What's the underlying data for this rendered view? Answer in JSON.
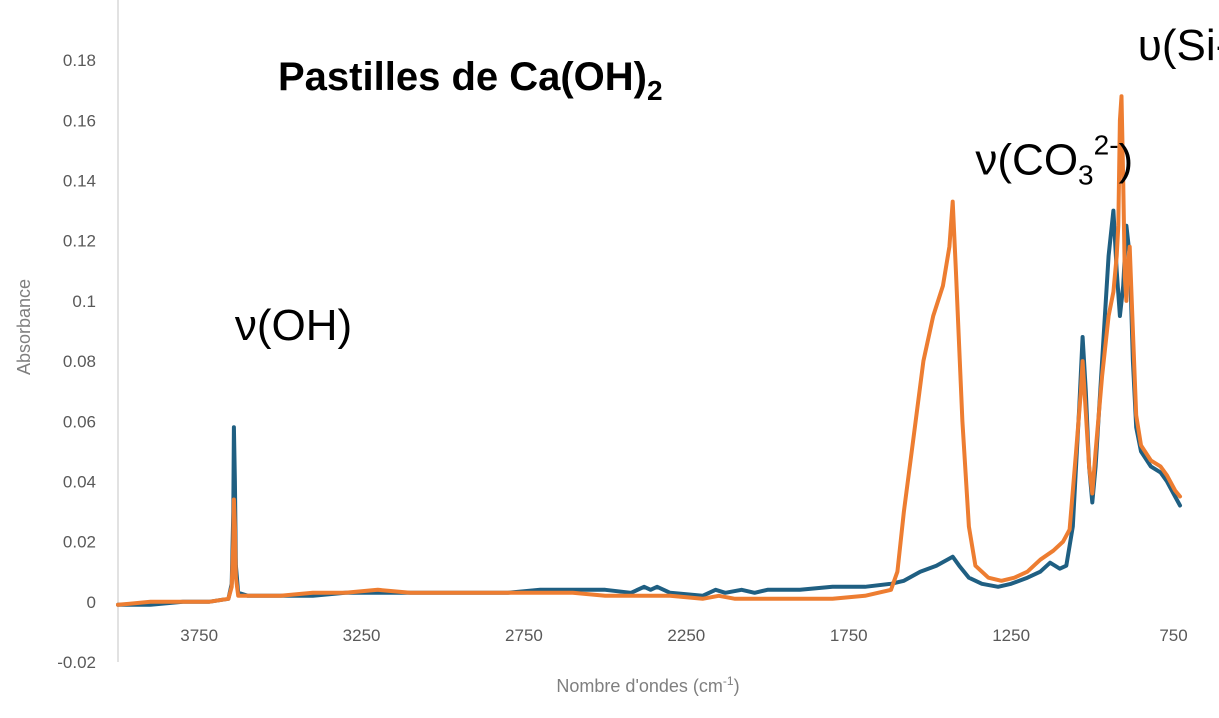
{
  "chart_data": {
    "type": "line",
    "title": "Pastilles de Ca(OH)",
    "title_subscript": "2",
    "xlabel": "Nombre d'ondes (cm",
    "xlabel_superscript": "-1",
    "xlabel_end": ")",
    "ylabel": "Absorbance",
    "x_reversed": true,
    "xlim": [
      4000,
      730
    ],
    "ylim": [
      -0.02,
      0.2
    ],
    "x_ticks": [
      3750,
      3250,
      2750,
      2250,
      1750,
      1250,
      750
    ],
    "x_tick_labels": [
      "3750",
      "3250",
      "2750",
      "2250",
      "1750",
      "1250",
      "750"
    ],
    "y_ticks": [
      -0.02,
      0,
      0.02,
      0.04,
      0.06,
      0.08,
      0.1,
      0.12,
      0.14,
      0.16,
      0.18
    ],
    "y_tick_labels": [
      "-0.02",
      "0",
      "0.02",
      "0.04",
      "0.06",
      "0.08",
      "0.1",
      "0.12",
      "0.14",
      "0.16",
      "0.18"
    ],
    "grid": false,
    "legend": "none",
    "annotations": [
      {
        "id": "oh",
        "text": "ν(OH)",
        "x": 3640,
        "y": 0.087
      },
      {
        "id": "co3",
        "text_main": "ν(CO",
        "text_sub": "3",
        "text_sup": "2-",
        "text_end": ")",
        "x": 1360,
        "y": 0.142
      },
      {
        "id": "sio",
        "text": "υ(Si-O)",
        "x": 860,
        "y": 0.18
      }
    ],
    "series": [
      {
        "color": "#1f5f82",
        "points": [
          [
            4000,
            -0.001
          ],
          [
            3900,
            -0.001
          ],
          [
            3800,
            0.0
          ],
          [
            3720,
            0.0
          ],
          [
            3660,
            0.001
          ],
          [
            3650,
            0.006
          ],
          [
            3645,
            0.03
          ],
          [
            3643,
            0.058
          ],
          [
            3640,
            0.04
          ],
          [
            3637,
            0.012
          ],
          [
            3630,
            0.003
          ],
          [
            3600,
            0.002
          ],
          [
            3500,
            0.002
          ],
          [
            3400,
            0.002
          ],
          [
            3300,
            0.003
          ],
          [
            3200,
            0.003
          ],
          [
            3100,
            0.003
          ],
          [
            3000,
            0.003
          ],
          [
            2900,
            0.003
          ],
          [
            2800,
            0.003
          ],
          [
            2700,
            0.004
          ],
          [
            2600,
            0.004
          ],
          [
            2500,
            0.004
          ],
          [
            2420,
            0.003
          ],
          [
            2380,
            0.005
          ],
          [
            2360,
            0.004
          ],
          [
            2340,
            0.005
          ],
          [
            2300,
            0.003
          ],
          [
            2200,
            0.002
          ],
          [
            2160,
            0.004
          ],
          [
            2130,
            0.003
          ],
          [
            2080,
            0.004
          ],
          [
            2040,
            0.003
          ],
          [
            2000,
            0.004
          ],
          [
            1900,
            0.004
          ],
          [
            1800,
            0.005
          ],
          [
            1700,
            0.005
          ],
          [
            1620,
            0.006
          ],
          [
            1580,
            0.007
          ],
          [
            1530,
            0.01
          ],
          [
            1480,
            0.012
          ],
          [
            1430,
            0.015
          ],
          [
            1410,
            0.012
          ],
          [
            1380,
            0.008
          ],
          [
            1340,
            0.006
          ],
          [
            1290,
            0.005
          ],
          [
            1250,
            0.006
          ],
          [
            1200,
            0.008
          ],
          [
            1160,
            0.01
          ],
          [
            1130,
            0.013
          ],
          [
            1100,
            0.011
          ],
          [
            1080,
            0.012
          ],
          [
            1060,
            0.025
          ],
          [
            1040,
            0.065
          ],
          [
            1030,
            0.088
          ],
          [
            1020,
            0.07
          ],
          [
            1010,
            0.045
          ],
          [
            1000,
            0.033
          ],
          [
            990,
            0.045
          ],
          [
            970,
            0.08
          ],
          [
            950,
            0.115
          ],
          [
            935,
            0.13
          ],
          [
            925,
            0.11
          ],
          [
            915,
            0.095
          ],
          [
            905,
            0.105
          ],
          [
            895,
            0.125
          ],
          [
            885,
            0.115
          ],
          [
            875,
            0.08
          ],
          [
            865,
            0.058
          ],
          [
            850,
            0.05
          ],
          [
            820,
            0.045
          ],
          [
            790,
            0.043
          ],
          [
            770,
            0.04
          ],
          [
            745,
            0.035
          ],
          [
            730,
            0.032
          ]
        ]
      },
      {
        "color": "#ed7d31",
        "points": [
          [
            4000,
            -0.001
          ],
          [
            3900,
            0.0
          ],
          [
            3800,
            0.0
          ],
          [
            3720,
            0.0
          ],
          [
            3660,
            0.001
          ],
          [
            3650,
            0.005
          ],
          [
            3645,
            0.02
          ],
          [
            3643,
            0.034
          ],
          [
            3640,
            0.025
          ],
          [
            3637,
            0.008
          ],
          [
            3630,
            0.002
          ],
          [
            3600,
            0.002
          ],
          [
            3500,
            0.002
          ],
          [
            3400,
            0.003
          ],
          [
            3300,
            0.003
          ],
          [
            3200,
            0.004
          ],
          [
            3100,
            0.003
          ],
          [
            3000,
            0.003
          ],
          [
            2900,
            0.003
          ],
          [
            2800,
            0.003
          ],
          [
            2700,
            0.003
          ],
          [
            2600,
            0.003
          ],
          [
            2500,
            0.002
          ],
          [
            2400,
            0.002
          ],
          [
            2300,
            0.002
          ],
          [
            2200,
            0.001
          ],
          [
            2150,
            0.002
          ],
          [
            2100,
            0.001
          ],
          [
            2000,
            0.001
          ],
          [
            1900,
            0.001
          ],
          [
            1800,
            0.001
          ],
          [
            1700,
            0.002
          ],
          [
            1620,
            0.004
          ],
          [
            1600,
            0.01
          ],
          [
            1580,
            0.03
          ],
          [
            1550,
            0.055
          ],
          [
            1520,
            0.08
          ],
          [
            1490,
            0.095
          ],
          [
            1460,
            0.105
          ],
          [
            1440,
            0.118
          ],
          [
            1430,
            0.133
          ],
          [
            1420,
            0.11
          ],
          [
            1400,
            0.06
          ],
          [
            1380,
            0.025
          ],
          [
            1360,
            0.012
          ],
          [
            1320,
            0.008
          ],
          [
            1280,
            0.007
          ],
          [
            1240,
            0.008
          ],
          [
            1200,
            0.01
          ],
          [
            1160,
            0.014
          ],
          [
            1120,
            0.017
          ],
          [
            1090,
            0.02
          ],
          [
            1070,
            0.024
          ],
          [
            1050,
            0.05
          ],
          [
            1035,
            0.07
          ],
          [
            1030,
            0.08
          ],
          [
            1020,
            0.063
          ],
          [
            1010,
            0.045
          ],
          [
            1000,
            0.036
          ],
          [
            990,
            0.05
          ],
          [
            970,
            0.075
          ],
          [
            950,
            0.095
          ],
          [
            935,
            0.103
          ],
          [
            925,
            0.115
          ],
          [
            920,
            0.125
          ],
          [
            915,
            0.16
          ],
          [
            910,
            0.168
          ],
          [
            905,
            0.14
          ],
          [
            900,
            0.108
          ],
          [
            895,
            0.1
          ],
          [
            890,
            0.112
          ],
          [
            885,
            0.118
          ],
          [
            875,
            0.09
          ],
          [
            865,
            0.062
          ],
          [
            850,
            0.052
          ],
          [
            820,
            0.047
          ],
          [
            790,
            0.045
          ],
          [
            770,
            0.042
          ],
          [
            745,
            0.037
          ],
          [
            730,
            0.035
          ]
        ]
      }
    ]
  }
}
